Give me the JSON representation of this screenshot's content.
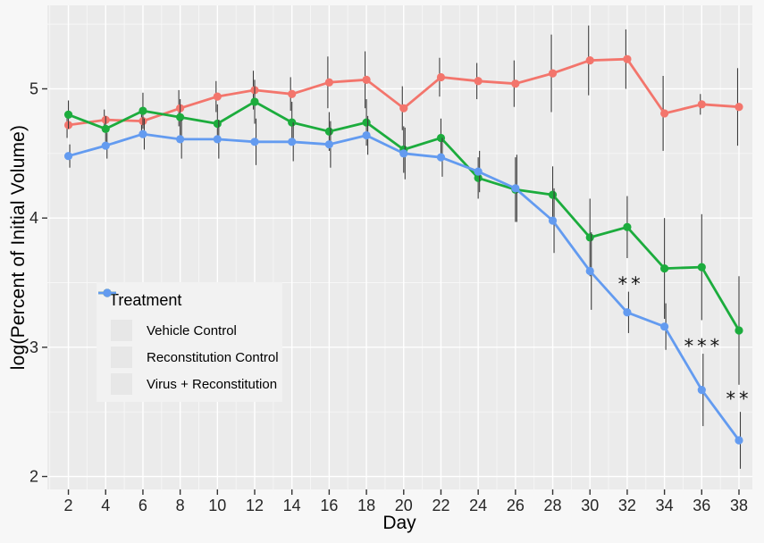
{
  "figure": {
    "background": "#f7f7f7",
    "panel_background": "#ebebeb",
    "grid_major_color": "#ffffff",
    "grid_minor_color": "#f7f7f7",
    "tick_color": "#333333",
    "tick_label_color": "#262626",
    "errorbar_color": "#3c3c3c",
    "annotation_color": "#111111"
  },
  "legend": {
    "title": "Treatment",
    "entries": [
      {
        "label": "Vehicle Control",
        "color": "#F3756C"
      },
      {
        "label": "Reconstitution Control",
        "color": "#1CAC3D"
      },
      {
        "label": "Virus + Reconstitution",
        "color": "#639BF0"
      }
    ]
  },
  "chart_data": {
    "type": "line",
    "title": "",
    "xlabel": "Day",
    "ylabel": "log(Percent of Initial Volume)",
    "x": [
      2,
      4,
      6,
      8,
      10,
      12,
      14,
      16,
      18,
      20,
      22,
      24,
      26,
      28,
      30,
      32,
      34,
      36,
      38
    ],
    "x_ticks": [
      2,
      4,
      6,
      8,
      10,
      12,
      14,
      16,
      18,
      20,
      22,
      24,
      26,
      28,
      30,
      32,
      34,
      36,
      38
    ],
    "y_ticks": [
      2,
      3,
      4,
      5
    ],
    "y_minor_ticks": [
      2.5,
      3.5,
      4.5,
      5.5
    ],
    "xlim": [
      0.87,
      38.72
    ],
    "ylim": [
      1.9,
      5.646
    ],
    "grid": true,
    "legend_position": "inside-left",
    "series": [
      {
        "name": "Vehicle Control",
        "color": "#F3756C",
        "values": [
          4.72,
          4.76,
          4.75,
          4.85,
          4.94,
          4.99,
          4.96,
          5.05,
          5.07,
          4.85,
          5.09,
          5.06,
          5.04,
          5.12,
          5.22,
          5.23,
          4.81,
          4.88,
          4.86
        ],
        "err": [
          0.1,
          0.08,
          0.1,
          0.14,
          0.12,
          0.15,
          0.13,
          0.2,
          0.22,
          0.17,
          0.15,
          0.14,
          0.18,
          0.3,
          0.27,
          0.23,
          0.29,
          0.08,
          0.3
        ]
      },
      {
        "name": "Reconstitution Control",
        "color": "#1CAC3D",
        "values": [
          4.8,
          4.69,
          4.83,
          4.78,
          4.73,
          4.9,
          4.74,
          4.67,
          4.74,
          4.53,
          4.62,
          4.31,
          4.22,
          4.18,
          3.85,
          3.93,
          3.61,
          3.62,
          3.13
        ],
        "err": [
          0.11,
          0.1,
          0.14,
          0.14,
          0.15,
          0.17,
          0.16,
          0.15,
          0.18,
          0.18,
          0.15,
          0.16,
          0.25,
          0.22,
          0.3,
          0.24,
          0.39,
          0.41,
          0.42
        ]
      },
      {
        "name": "Virus + Reconstitution",
        "color": "#639BF0",
        "values": [
          4.48,
          4.56,
          4.65,
          4.61,
          4.61,
          4.59,
          4.59,
          4.57,
          4.64,
          4.5,
          4.47,
          4.36,
          4.23,
          3.98,
          3.59,
          3.27,
          3.16,
          2.67,
          2.28
        ],
        "err": [
          0.09,
          0.1,
          0.12,
          0.15,
          0.15,
          0.18,
          0.15,
          0.18,
          0.15,
          0.2,
          0.15,
          0.16,
          0.26,
          0.25,
          0.3,
          0.16,
          0.18,
          0.28,
          0.22
        ]
      }
    ],
    "annotations": [
      {
        "x": 32.2,
        "y": 3.49,
        "label": "**"
      },
      {
        "x": 36.1,
        "y": 3.01,
        "label": "***"
      },
      {
        "x": 38.0,
        "y": 2.6,
        "label": "**"
      }
    ]
  }
}
